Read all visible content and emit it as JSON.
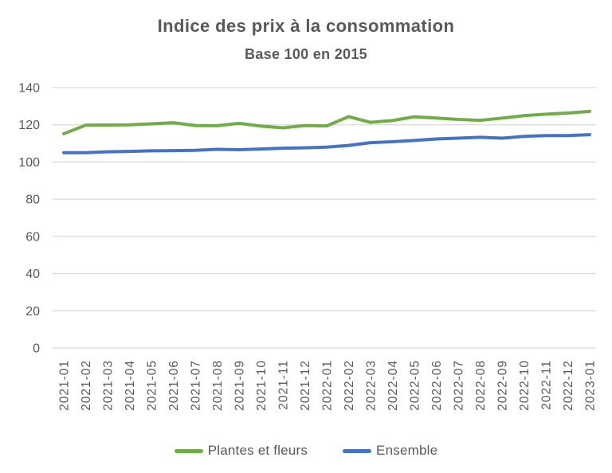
{
  "header": {
    "title": "Indice des prix à la consommation",
    "subtitle": "Base 100 en 2015"
  },
  "colors": {
    "series_plantes": "#70AD47",
    "series_ensemble": "#4472C4",
    "gridline": "#D9D9D9",
    "text": "#595959",
    "background": "#FFFFFF"
  },
  "chart_data": {
    "type": "line",
    "title": "Indice des prix à la consommation",
    "subtitle": "Base 100 en 2015",
    "categories": [
      "2021-01",
      "2021-02",
      "2021-03",
      "2021-04",
      "2021-05",
      "2021-06",
      "2021-07",
      "2021-08",
      "2021-09",
      "2021-10",
      "2021-11",
      "2021-12",
      "2022-01",
      "2022-02",
      "2022-03",
      "2022-04",
      "2022-05",
      "2022-06",
      "2022-07",
      "2022-08",
      "2022-09",
      "2022-10",
      "2022-11",
      "2022-12",
      "2023-01"
    ],
    "series": [
      {
        "name": "Plantes et fleurs",
        "color": "#70AD47",
        "values": [
          115.2,
          119.8,
          119.9,
          120.0,
          120.5,
          121.1,
          119.6,
          119.5,
          120.8,
          119.3,
          118.4,
          119.6,
          119.4,
          124.4,
          121.3,
          122.3,
          124.3,
          123.6,
          122.9,
          122.4,
          123.6,
          124.9,
          125.7,
          126.3,
          127.2
        ]
      },
      {
        "name": "Ensemble",
        "color": "#4472C4",
        "values": [
          105.0,
          105.0,
          105.5,
          105.7,
          106.0,
          106.1,
          106.3,
          106.8,
          106.6,
          107.0,
          107.4,
          107.6,
          108.0,
          108.9,
          110.4,
          110.9,
          111.6,
          112.4,
          112.8,
          113.3,
          112.8,
          113.8,
          114.2,
          114.2,
          114.7
        ]
      }
    ],
    "xlabel": "",
    "ylabel": "",
    "ylim": [
      0,
      140
    ],
    "yticks": [
      0,
      20,
      40,
      60,
      80,
      100,
      120,
      140
    ],
    "grid": true,
    "legend_position": "bottom"
  }
}
